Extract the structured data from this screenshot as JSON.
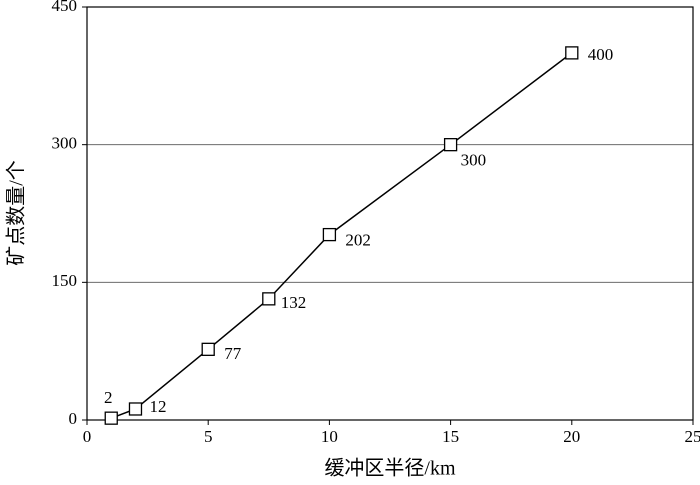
{
  "chart_data": {
    "type": "line",
    "x_label": "缓冲区半径/km",
    "y_label": "矿点数量/个",
    "x": [
      1,
      2,
      5,
      7.5,
      10,
      15,
      20
    ],
    "series": [
      {
        "color": "#000000",
        "values": [
          2,
          12,
          77,
          132,
          202,
          300,
          400
        ]
      }
    ],
    "xlim": [
      0,
      25
    ],
    "xticks": [
      0,
      5,
      10,
      15,
      20,
      25
    ],
    "ylim": [
      0,
      450
    ],
    "yticks": [
      0,
      150,
      300,
      450
    ],
    "grid": true,
    "marker": "square"
  }
}
